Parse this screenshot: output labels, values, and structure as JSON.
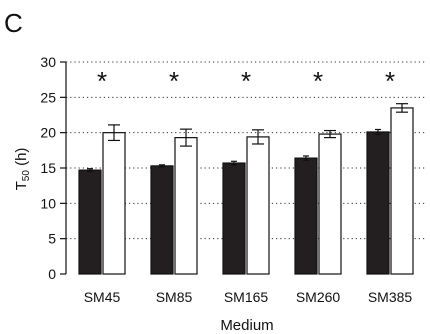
{
  "panel_label": "C",
  "chart_data": {
    "type": "bar",
    "title": "",
    "xlabel": "Medium",
    "ylabel_main": "T",
    "ylabel_sub": "50",
    "ylabel_unit": " (h)",
    "categories": [
      "SM45",
      "SM85",
      "SM165",
      "SM260",
      "SM385"
    ],
    "ylim": [
      0,
      30
    ],
    "yticks": [
      0,
      5,
      10,
      15,
      20,
      25,
      30
    ],
    "grid": "horizontal-dotted",
    "series": [
      {
        "color": "#231f20",
        "values": [
          14.7,
          15.3,
          15.7,
          16.4,
          20.1
        ],
        "errors": [
          0.2,
          0.15,
          0.25,
          0.3,
          0.35
        ]
      },
      {
        "color": "#ffffff",
        "values": [
          20.0,
          19.3,
          19.4,
          19.8,
          23.5
        ],
        "errors": [
          1.1,
          1.2,
          1.0,
          0.5,
          0.6
        ]
      }
    ],
    "annotations": [
      "*",
      "*",
      "*",
      "*",
      "*"
    ]
  }
}
